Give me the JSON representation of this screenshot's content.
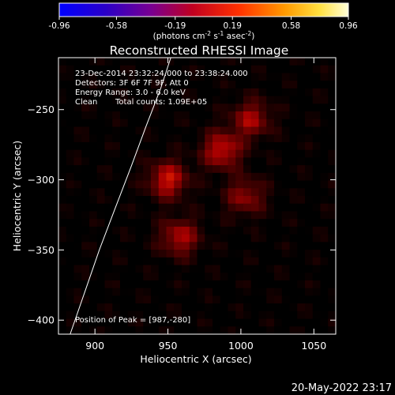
{
  "colorbar": {
    "ticks": [
      "-0.96",
      "-0.58",
      "-0.19",
      "0.19",
      "0.58",
      "0.96"
    ],
    "tick_values": [
      -0.96,
      -0.58,
      -0.19,
      0.19,
      0.58,
      0.96
    ],
    "range": [
      -0.96,
      0.96
    ],
    "units_main": "(photons cm",
    "units_exp1": "-2",
    "units_mid": " s",
    "units_exp2": "-1",
    "units_end": " asec",
    "units_exp3": "-2",
    "units_close": ")"
  },
  "chart_data": {
    "type": "heatmap",
    "title": "Reconstructed RHESSI Image",
    "xlabel": "Heliocentric X (arcsec)",
    "ylabel": "Heliocentric Y (arcsec)",
    "xlim": [
      875,
      1065
    ],
    "ylim": [
      -410,
      -213
    ],
    "x_ticks": [
      900,
      950,
      1000,
      1050
    ],
    "y_ticks": [
      -250,
      -300,
      -350,
      -400
    ],
    "x_tick_labels": [
      "900",
      "950",
      "1000",
      "1050"
    ],
    "y_tick_labels": [
      "−250",
      "−300",
      "−350",
      "−400"
    ],
    "colormap": "hot",
    "sources": [
      {
        "x": 950,
        "y": -300,
        "peak": 1.0
      },
      {
        "x": 987,
        "y": -279,
        "peak": 0.98
      },
      {
        "x": 958,
        "y": -341,
        "peak": 0.85
      },
      {
        "x": 1007,
        "y": -257,
        "peak": 0.8
      },
      {
        "x": 1003,
        "y": -312,
        "peak": 0.7
      }
    ],
    "limb": [
      [
        883,
        -410
      ],
      [
        893,
        -380
      ],
      [
        903,
        -350
      ],
      [
        914,
        -320
      ],
      [
        925,
        -290
      ],
      [
        935,
        -262
      ],
      [
        945,
        -235
      ],
      [
        952,
        -213
      ]
    ],
    "annotations": {
      "line1": "23-Dec-2014 23:32:24.000 to 23:38:24.000",
      "line2": "Detectors: 3F 6F 7F 9F, Att 0",
      "line3": "Energy Range: 3.0 - 6.0 keV",
      "line4a": "Clean",
      "line4b": "Total counts: 1.09E+05",
      "peak": "Position of Peak = [987,-280]"
    }
  },
  "timestamp": "20-May-2022 23:17"
}
